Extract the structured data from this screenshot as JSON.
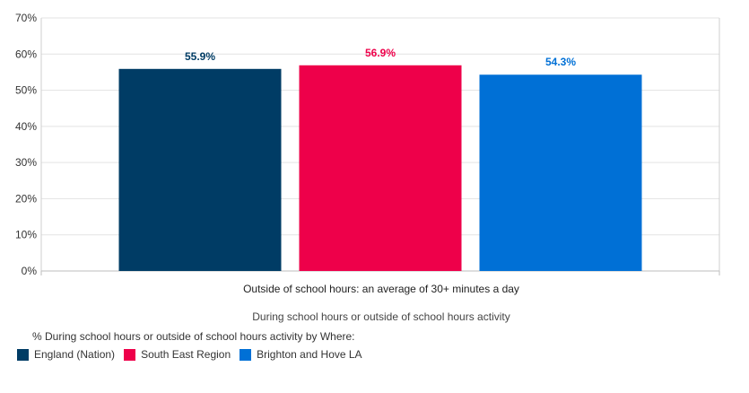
{
  "chart_data": {
    "type": "bar",
    "categories": [
      "Outside of school hours: an average of 30+ minutes a day"
    ],
    "xlabel": "During school hours or outside of school hours activity",
    "ylabel": "",
    "ylim": [
      0,
      70
    ],
    "y_ticks": [
      "0%",
      "10%",
      "20%",
      "30%",
      "40%",
      "50%",
      "60%",
      "70%"
    ],
    "y_tick_values": [
      0,
      10,
      20,
      30,
      40,
      50,
      60,
      70
    ],
    "grid": true,
    "legend_placement": "bottom-left",
    "legend_title": "% During school hours or outside of school hours activity by Where:",
    "series": [
      {
        "name": "England (Nation)",
        "values": [
          55.9
        ],
        "label": "55.9%",
        "color": "#003c65"
      },
      {
        "name": "South East Region",
        "values": [
          56.9
        ],
        "label": "56.9%",
        "color": "#ee004a"
      },
      {
        "name": "Brighton and Hove LA",
        "values": [
          54.3
        ],
        "label": "54.3%",
        "color": "#0070d6"
      }
    ]
  }
}
